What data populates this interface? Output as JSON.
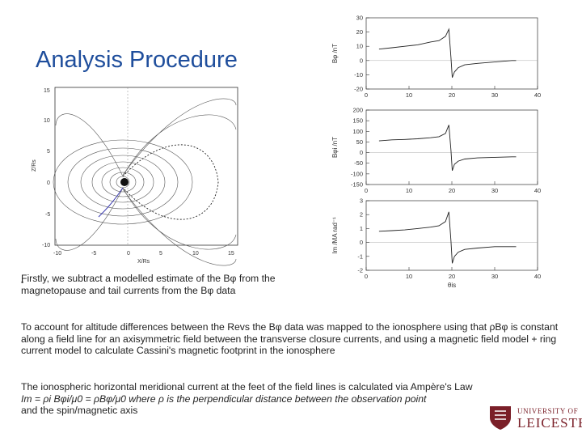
{
  "slide": {
    "title": "Analysis Procedure",
    "p1": "Firstly, we subtract a modelled estimate of the Bφ from the magnetopause and tail currents from the Bφ data",
    "p2": "To account for altitude differences between the Revs the Bφ data was mapped to the ionosphere using that ρBφ is constant along a field line for an axisymmetric field between the transverse closure currents, and using a magnetic field model + ring current model to calculate Cassini's magnetic footprint in the ionosphere",
    "p3_line1": "The ionospheric horizontal meridional current at the feet of the field lines is calculated via Ampère's Law",
    "p3_line2": "Im = ρi Bφi/μ0 = ρBφ/μ0 where ρ is the perpendicular distance between the observation point",
    "p3_line3": "and the spin/magnetic axis",
    "bullet": "•"
  },
  "logo": {
    "line1": "UNIVERSITY OF",
    "line2": "LEICESTER",
    "color": "#7a1f28"
  },
  "field_plot": {
    "xlabel": "X/Rs",
    "ylabel": "Z/Rs",
    "xticks": [
      "-10",
      "-5",
      "0",
      "5",
      "10",
      "15"
    ],
    "yticks": [
      "15",
      "10",
      "5",
      "0",
      "-5",
      "-10"
    ]
  },
  "chart_data": [
    {
      "type": "line",
      "ylabel": "Bφ /nT",
      "xlabel": "",
      "xlim": [
        0,
        40
      ],
      "ylim": [
        -20,
        30
      ],
      "xticks": [
        "0",
        "10",
        "20",
        "30",
        "40"
      ],
      "yticks": [
        "30",
        "20",
        "10",
        "0",
        "-10",
        "-20"
      ],
      "x": [
        3,
        6,
        9,
        12,
        15,
        17,
        18.5,
        19.3,
        19.8,
        20.1,
        20.6,
        21.5,
        23,
        26,
        30,
        34,
        35
      ],
      "y": [
        8,
        9,
        10,
        11,
        13,
        14,
        17,
        22,
        2,
        -12,
        -8,
        -5,
        -3,
        -2,
        -1,
        0,
        0
      ]
    },
    {
      "type": "line",
      "ylabel": "Bφi /nT",
      "xlabel": "",
      "xlim": [
        0,
        40
      ],
      "ylim": [
        -150,
        200
      ],
      "xticks": [
        "0",
        "10",
        "20",
        "30",
        "40"
      ],
      "yticks": [
        "200",
        "150",
        "100",
        "50",
        "0",
        "-50",
        "-100",
        "-150"
      ],
      "x": [
        3,
        6,
        9,
        12,
        15,
        17,
        18.5,
        19.3,
        19.8,
        20.1,
        20.6,
        21.5,
        23,
        26,
        30,
        34,
        35
      ],
      "y": [
        55,
        60,
        62,
        65,
        70,
        75,
        90,
        130,
        10,
        -85,
        -55,
        -40,
        -30,
        -25,
        -22,
        -20,
        -20
      ]
    },
    {
      "type": "line",
      "ylabel": "Im /MA rad⁻¹",
      "xlabel": "θis",
      "xlim": [
        0,
        40
      ],
      "ylim": [
        -2,
        3
      ],
      "xticks": [
        "0",
        "10",
        "20",
        "30",
        "40"
      ],
      "yticks": [
        "3",
        "2",
        "1",
        "0",
        "-1",
        "-2"
      ],
      "x": [
        3,
        6,
        9,
        12,
        15,
        17,
        18.5,
        19.3,
        19.8,
        20.1,
        20.6,
        21.5,
        23,
        26,
        30,
        34,
        35
      ],
      "y": [
        0.8,
        0.85,
        0.9,
        1.0,
        1.1,
        1.2,
        1.5,
        2.2,
        0.1,
        -1.5,
        -1.0,
        -0.7,
        -0.5,
        -0.4,
        -0.3,
        -0.3,
        -0.3
      ]
    }
  ]
}
